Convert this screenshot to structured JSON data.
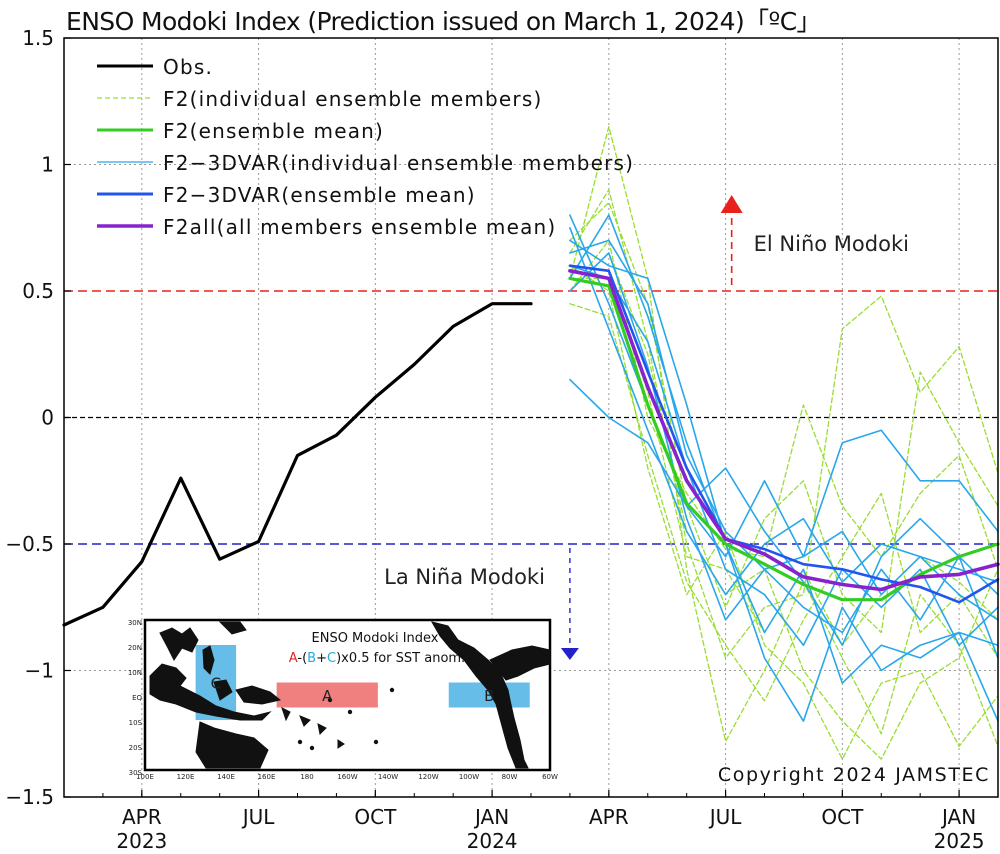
{
  "chart_data": {
    "type": "line",
    "title": "ENSO Modoki Index (Prediction issued on March 1, 2024)「ºC」",
    "ylim": [
      -1.5,
      1.5
    ],
    "yticks": [
      1.5,
      1,
      0.5,
      0,
      -0.5,
      -1,
      -1.5
    ],
    "ytick_labels": [
      "1.5",
      "1",
      "0.5",
      "0",
      "−0.5",
      "−1",
      "−1.5"
    ],
    "xlim": [
      "2023-02",
      "2025-02"
    ],
    "xtick_labels": [
      {
        "month": "APR",
        "year": "2023",
        "date": "2023-04"
      },
      {
        "month": "JUL",
        "year": "",
        "date": "2023-07"
      },
      {
        "month": "OCT",
        "year": "",
        "date": "2023-10"
      },
      {
        "month": "JAN",
        "year": "2024",
        "date": "2024-01"
      },
      {
        "month": "APR",
        "year": "",
        "date": "2024-04"
      },
      {
        "month": "JUL",
        "year": "",
        "date": "2024-07"
      },
      {
        "month": "OCT",
        "year": "",
        "date": "2024-10"
      },
      {
        "month": "JAN",
        "year": "2025",
        "date": "2025-01"
      }
    ],
    "grid": true,
    "reference_lines": [
      {
        "y": 0.5,
        "color": "#e8221b",
        "label": "El Niño Modoki",
        "arrow": "up"
      },
      {
        "y": -0.5,
        "color": "#2222cc",
        "label": "La Niña Modoki",
        "arrow": "down"
      },
      {
        "y": 0,
        "color": "#000000",
        "label": ""
      }
    ],
    "legend": [
      {
        "label": "Obs.",
        "color": "#000000",
        "style": "solid",
        "width": 3
      },
      {
        "label": "F2(individual ensemble members)",
        "color": "#99dd33",
        "style": "dashed",
        "width": 1.3
      },
      {
        "label": "F2(ensemble mean)",
        "color": "#33cc22",
        "style": "solid",
        "width": 3
      },
      {
        "label": "F2−3DVAR(individual ensemble members)",
        "color": "#2aa7ea",
        "style": "solid",
        "width": 1.3
      },
      {
        "label": "F2−3DVAR(ensemble mean)",
        "color": "#2255ee",
        "style": "solid",
        "width": 3
      },
      {
        "label": "F2all(all members ensemble mean)",
        "color": "#8822cc",
        "style": "solid",
        "width": 3.5
      }
    ],
    "legend_placement": "top-left",
    "series": [
      {
        "name": "Obs.",
        "color": "#000000",
        "x": [
          "2023-02",
          "2023-03",
          "2023-04",
          "2023-05",
          "2023-06",
          "2023-07",
          "2023-08",
          "2023-09",
          "2023-10",
          "2023-11",
          "2023-12",
          "2024-01",
          "2024-02"
        ],
        "y": [
          -0.82,
          -0.75,
          -0.57,
          -0.24,
          -0.56,
          -0.49,
          -0.15,
          -0.07,
          0.08,
          0.21,
          0.36,
          0.45,
          0.45
        ]
      },
      {
        "name": "F2(ensemble mean)",
        "color": "#33cc22",
        "x": [
          "2024-03",
          "2024-04",
          "2024-05",
          "2024-06",
          "2024-07",
          "2024-08",
          "2024-09",
          "2024-10",
          "2024-11",
          "2024-12",
          "2025-01",
          "2025-02"
        ],
        "y": [
          0.55,
          0.52,
          0.05,
          -0.34,
          -0.5,
          -0.58,
          -0.66,
          -0.72,
          -0.72,
          -0.62,
          -0.55,
          -0.5
        ]
      },
      {
        "name": "F2−3DVAR(ensemble mean)",
        "color": "#2255ee",
        "x": [
          "2024-03",
          "2024-04",
          "2024-05",
          "2024-06",
          "2024-07",
          "2024-08",
          "2024-09",
          "2024-10",
          "2024-11",
          "2024-12",
          "2025-01",
          "2025-02"
        ],
        "y": [
          0.6,
          0.58,
          0.18,
          -0.2,
          -0.48,
          -0.52,
          -0.58,
          -0.6,
          -0.64,
          -0.67,
          -0.73,
          -0.64
        ]
      },
      {
        "name": "F2all(all members ensemble mean)",
        "color": "#8822cc",
        "x": [
          "2024-03",
          "2024-04",
          "2024-05",
          "2024-06",
          "2024-07",
          "2024-08",
          "2024-09",
          "2024-10",
          "2024-11",
          "2024-12",
          "2025-01",
          "2025-02"
        ],
        "y": [
          0.58,
          0.55,
          0.12,
          -0.25,
          -0.48,
          -0.54,
          -0.63,
          -0.66,
          -0.68,
          -0.63,
          -0.62,
          -0.58
        ]
      }
    ],
    "members_f2": {
      "x": [
        "2024-03",
        "2024-04",
        "2024-05",
        "2024-06",
        "2024-07",
        "2024-08",
        "2024-09",
        "2024-10",
        "2024-11",
        "2024-12",
        "2025-01",
        "2025-02"
      ],
      "color": "#99dd33",
      "runs": [
        [
          0.55,
          1.15,
          0.55,
          -0.6,
          -1.28,
          -1.0,
          -0.65,
          -0.95,
          -1.25,
          -0.7,
          -0.9,
          -1.3
        ],
        [
          0.65,
          0.9,
          0.3,
          -0.5,
          -0.95,
          -0.75,
          -0.7,
          0.35,
          0.48,
          0.1,
          0.28,
          -0.22
        ],
        [
          0.5,
          0.7,
          0.0,
          -0.3,
          -0.52,
          -0.55,
          0.05,
          -0.35,
          -0.55,
          -0.3,
          -0.15,
          -0.6
        ],
        [
          0.6,
          0.5,
          -0.2,
          -0.7,
          -0.45,
          -0.9,
          -1.05,
          -1.35,
          -1.05,
          -1.0,
          -1.3,
          -1.1
        ],
        [
          0.7,
          0.85,
          0.45,
          -0.35,
          -0.75,
          -0.4,
          -0.25,
          -0.7,
          -0.85,
          0.18,
          -0.1,
          -0.35
        ],
        [
          0.45,
          0.4,
          -0.15,
          -0.65,
          -0.9,
          -1.12,
          -0.8,
          -0.55,
          -0.3,
          -0.85,
          -0.7,
          -0.95
        ],
        [
          0.5,
          0.65,
          0.25,
          -0.45,
          -0.7,
          -0.6,
          -1.0,
          -1.2,
          -1.35,
          -1.05,
          -0.95,
          -0.6
        ],
        [
          0.55,
          0.55,
          0.1,
          -0.55,
          -0.6,
          -0.85,
          -0.6,
          -0.9,
          -0.7,
          -0.55,
          -0.65,
          -0.8
        ]
      ]
    },
    "members_3dvar": {
      "x": [
        "2024-03",
        "2024-04",
        "2024-05",
        "2024-06",
        "2024-07",
        "2024-08",
        "2024-09",
        "2024-10",
        "2024-11",
        "2024-12",
        "2025-01",
        "2025-02"
      ],
      "color": "#2aa7ea",
      "runs": [
        [
          0.8,
          0.45,
          0.05,
          -0.35,
          -0.55,
          -0.25,
          -0.55,
          -0.1,
          -0.05,
          -0.25,
          -0.25,
          -0.45
        ],
        [
          0.15,
          0.0,
          -0.1,
          -0.35,
          -0.2,
          -0.45,
          -0.65,
          -0.9,
          -0.55,
          -0.4,
          -0.55,
          -0.7
        ],
        [
          0.7,
          0.6,
          0.55,
          0.05,
          -0.5,
          -0.95,
          -1.2,
          -0.75,
          -1.0,
          -0.9,
          -0.85,
          -1.2
        ],
        [
          0.5,
          0.65,
          0.2,
          -0.4,
          -0.8,
          -0.6,
          -0.55,
          -0.45,
          -0.7,
          -0.55,
          -0.7,
          -0.8
        ],
        [
          0.55,
          0.8,
          0.4,
          -0.1,
          -0.5,
          -0.85,
          -0.6,
          -1.05,
          -0.9,
          -0.95,
          -0.85,
          -0.9
        ],
        [
          0.6,
          0.55,
          0.3,
          -0.2,
          -0.6,
          -0.7,
          -0.9,
          -0.6,
          -0.75,
          -0.6,
          -0.9,
          -0.75
        ],
        [
          0.75,
          0.35,
          -0.05,
          -0.45,
          -0.7,
          -0.5,
          -0.4,
          -0.65,
          -0.5,
          -0.55,
          -0.6,
          -0.65
        ],
        [
          0.65,
          0.7,
          0.45,
          -0.15,
          -0.45,
          -0.6,
          -0.75,
          -0.85,
          -0.6,
          -0.8,
          -0.55,
          -0.95
        ]
      ]
    },
    "annotations": {
      "el_nino": "El Niño Modoki",
      "la_nina": "La Niña Modoki",
      "copyright": "Copyright 2024 JAMSTEC"
    },
    "inset": {
      "title": "ENSO Modoki Index",
      "formula_parts": [
        {
          "text": "A",
          "color": "#e02222"
        },
        {
          "text": "-(",
          "color": "#111111"
        },
        {
          "text": "B",
          "color": "#22aadd"
        },
        {
          "text": "+",
          "color": "#111111"
        },
        {
          "text": "C",
          "color": "#22aadd"
        },
        {
          "text": ")x0.5 for SST anom.",
          "color": "#111111"
        }
      ],
      "boxes": [
        {
          "label": "A",
          "color": "#f08080"
        },
        {
          "label": "B",
          "color": "#66bde8"
        },
        {
          "label": "C",
          "color": "#66bde8"
        }
      ],
      "lat_labels": [
        "30N",
        "20N",
        "10N",
        "EQ",
        "10S",
        "20S",
        "30S"
      ],
      "lon_labels": [
        "100E",
        "120E",
        "140E",
        "160E",
        "180",
        "160W",
        "140W",
        "120W",
        "100W",
        "80W",
        "60W"
      ]
    }
  }
}
